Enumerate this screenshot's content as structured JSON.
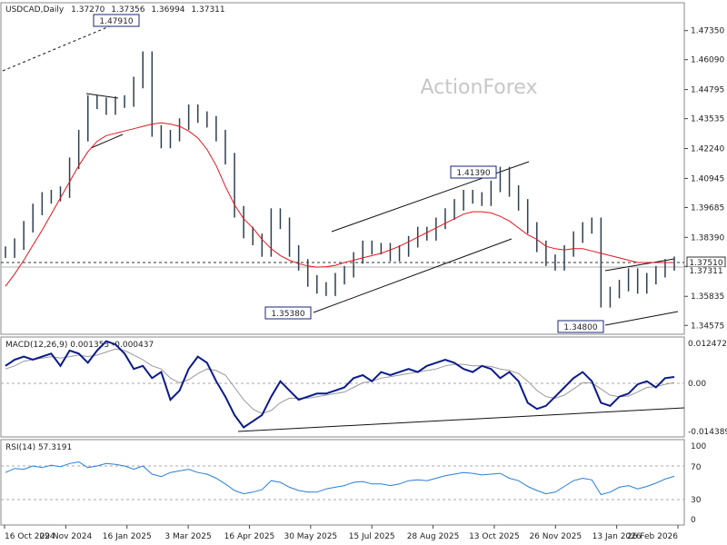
{
  "chart_data": [
    {
      "type": "line",
      "title": "USDCAD,Daily",
      "ohlc": [
        "1.37270",
        "1.37356",
        "1.36994",
        "1.37311"
      ],
      "watermark": "ActionForex",
      "x_tick_labels": [
        "16 Oct 2024",
        "29 Nov 2024",
        "16 Jan 2025",
        "3 Mar 2025",
        "16 Apr 2025",
        "30 May 2025",
        "15 Jul 2025",
        "28 Aug 2025",
        "13 Oct 2025",
        "26 Nov 2025",
        "13 Jan 2026",
        "26 Feb 2026"
      ],
      "y_tick_labels": [
        "1.47350",
        "1.46090",
        "1.44795",
        "1.43535",
        "1.42240",
        "1.40945",
        "1.39685",
        "1.38390",
        "1.37130",
        "1.35835",
        "1.34575"
      ],
      "ylim": [
        1.3427,
        1.4848
      ],
      "level_labels": [
        "1.47910",
        "1.41390",
        "1.35380",
        "1.34800"
      ],
      "current_price_label": "1.37311",
      "horizontal_level_label": "1.37510",
      "horizontal_level": 1.3751,
      "grid": false,
      "series": [
        {
          "type": "candlestick-ohlc",
          "x_dates": [
            "2024-10-16",
            "2024-10-23",
            "2024-10-30",
            "2024-11-06",
            "2024-11-13",
            "2024-11-20",
            "2024-11-27",
            "2024-12-04",
            "2024-12-11",
            "2024-12-18",
            "2024-12-25",
            "2025-01-01",
            "2025-01-08",
            "2025-01-15",
            "2025-01-22",
            "2025-01-29",
            "2025-02-05",
            "2025-02-12",
            "2025-02-19",
            "2025-02-26",
            "2025-03-05",
            "2025-03-12",
            "2025-03-19",
            "2025-03-26",
            "2025-04-02",
            "2025-04-09",
            "2025-04-16",
            "2025-04-23",
            "2025-04-30",
            "2025-05-07",
            "2025-05-14",
            "2025-05-21",
            "2025-05-28",
            "2025-06-04",
            "2025-06-11",
            "2025-06-18",
            "2025-06-25",
            "2025-07-02",
            "2025-07-09",
            "2025-07-16",
            "2025-07-23",
            "2025-07-30",
            "2025-08-06",
            "2025-08-13",
            "2025-08-20",
            "2025-08-27",
            "2025-09-03",
            "2025-09-10",
            "2025-09-17",
            "2025-09-24",
            "2025-10-01",
            "2025-10-08",
            "2025-10-15",
            "2025-10-22",
            "2025-10-29",
            "2025-11-05",
            "2025-11-12",
            "2025-11-19",
            "2025-11-26",
            "2025-12-03",
            "2025-12-10",
            "2025-12-17",
            "2025-12-24",
            "2025-12-31",
            "2026-01-07",
            "2026-01-14",
            "2026-01-21",
            "2026-01-28",
            "2026-02-04",
            "2026-02-11",
            "2026-02-18",
            "2026-02-25",
            "2026-03-04",
            "2026-03-11"
          ],
          "close": [
            1.3775,
            1.381,
            1.3885,
            1.396,
            1.401,
            1.402,
            1.4035,
            1.416,
            1.428,
            1.443,
            1.442,
            1.4395,
            1.4425,
            1.443,
            1.451,
            1.462,
            1.43,
            1.425,
            1.428,
            1.433,
            1.439,
            1.436,
            1.434,
            1.428,
            1.418,
            1.395,
            1.386,
            1.383,
            1.378,
            1.394,
            1.39,
            1.378,
            1.372,
            1.365,
            1.362,
            1.361,
            1.366,
            1.369,
            1.375,
            1.38,
            1.379,
            1.379,
            1.376,
            1.378,
            1.382,
            1.386,
            1.385,
            1.39,
            1.394,
            1.398,
            1.402,
            1.401,
            1.4,
            1.406,
            1.412,
            1.404,
            1.398,
            1.388,
            1.38,
            1.374,
            1.372,
            1.378,
            1.384,
            1.388,
            1.39,
            1.356,
            1.36,
            1.363,
            1.368,
            1.362,
            1.366,
            1.369,
            1.372,
            1.3731
          ]
        },
        {
          "name": "",
          "type": "sma",
          "color": "#e8141c",
          "values": [
            1.3627,
            1.368,
            1.374,
            1.3805,
            1.387,
            1.394,
            1.401,
            1.408,
            1.415,
            1.421,
            1.4255,
            1.428,
            1.429,
            1.43,
            1.431,
            1.432,
            1.433,
            1.4335,
            1.433,
            1.432,
            1.43,
            1.427,
            1.422,
            1.415,
            1.406,
            1.398,
            1.392,
            1.388,
            1.383,
            1.379,
            1.376,
            1.374,
            1.3725,
            1.3715,
            1.371,
            1.3712,
            1.3718,
            1.373,
            1.374,
            1.375,
            1.376,
            1.377,
            1.3785,
            1.38,
            1.382,
            1.384,
            1.386,
            1.388,
            1.39,
            1.392,
            1.394,
            1.395,
            1.395,
            1.3945,
            1.393,
            1.391,
            1.388,
            1.385,
            1.383,
            1.38,
            1.379,
            1.3785,
            1.379,
            1.379,
            1.378,
            1.377,
            1.376,
            1.375,
            1.374,
            1.373,
            1.373,
            1.373,
            1.373,
            1.373
          ]
        }
      ]
    },
    {
      "type": "line",
      "title": "MACD(12,26,9) 0.001353 -0.000437",
      "y_tick_labels": [
        "0.012472",
        "0.00",
        "-0.014389"
      ],
      "ylim": [
        -0.0175,
        0.0138
      ],
      "series": [
        {
          "name": "",
          "color": "#0a1a8c",
          "values": [
            0.005,
            0.007,
            0.008,
            0.007,
            0.008,
            0.009,
            0.005,
            0.01,
            0.009,
            0.006,
            0.01,
            0.013,
            0.012,
            0.009,
            0.004,
            0.005,
            0.001,
            0.003,
            -0.006,
            -0.003,
            0.004,
            0.008,
            0.006,
            0.0,
            -0.005,
            -0.011,
            -0.015,
            -0.013,
            -0.011,
            -0.005,
            0.0,
            -0.003,
            -0.006,
            -0.005,
            -0.004,
            -0.004,
            -0.003,
            -0.002,
            0.001,
            0.002,
            0.0,
            0.003,
            0.002,
            0.003,
            0.004,
            0.003,
            0.005,
            0.006,
            0.007,
            0.006,
            0.004,
            0.003,
            0.005,
            0.004,
            0.001,
            0.003,
            0.0,
            -0.007,
            -0.009,
            -0.008,
            -0.005,
            -0.002,
            0.001,
            0.003,
            0.0,
            -0.007,
            -0.008,
            -0.005,
            -0.004,
            -0.001,
            0.0,
            -0.002,
            0.001,
            0.0014
          ]
        },
        {
          "name": "",
          "color": "#999999",
          "values": [
            0.004,
            0.005,
            0.0065,
            0.007,
            0.0075,
            0.008,
            0.0075,
            0.008,
            0.0085,
            0.008,
            0.0085,
            0.0095,
            0.0105,
            0.01,
            0.0085,
            0.007,
            0.005,
            0.004,
            0.001,
            -0.0005,
            0.0005,
            0.0025,
            0.004,
            0.0035,
            0.002,
            -0.002,
            -0.006,
            -0.009,
            -0.0105,
            -0.0095,
            -0.007,
            -0.0055,
            -0.0055,
            -0.0055,
            -0.005,
            -0.0045,
            -0.004,
            -0.0035,
            -0.002,
            -0.0005,
            0.0,
            0.001,
            0.0015,
            0.002,
            0.0025,
            0.003,
            0.0035,
            0.004,
            0.005,
            0.0055,
            0.0055,
            0.005,
            0.005,
            0.0048,
            0.004,
            0.0035,
            0.0025,
            0.0,
            -0.003,
            -0.005,
            -0.0055,
            -0.0045,
            -0.0025,
            -0.0005,
            -0.0005,
            -0.0025,
            -0.0045,
            -0.005,
            -0.0048,
            -0.0035,
            -0.002,
            -0.0018,
            -0.001,
            -0.0004
          ]
        }
      ]
    },
    {
      "type": "line",
      "title": "RSI(14) 57.3191",
      "y_tick_labels": [
        "100",
        "70",
        "30",
        "0"
      ],
      "ylim": [
        0,
        100
      ],
      "series": [
        {
          "name": "",
          "color": "#2a7fd4",
          "values": [
            62,
            67,
            66,
            70,
            68,
            71,
            69,
            73,
            75,
            68,
            70,
            73,
            72,
            70,
            66,
            70,
            60,
            57,
            62,
            64,
            66,
            62,
            60,
            55,
            48,
            40,
            36,
            38,
            41,
            52,
            50,
            44,
            40,
            38,
            38,
            42,
            44,
            46,
            50,
            51,
            48,
            48,
            46,
            48,
            52,
            53,
            52,
            55,
            58,
            60,
            62,
            61,
            59,
            60,
            61,
            55,
            52,
            45,
            40,
            36,
            38,
            45,
            52,
            55,
            53,
            35,
            38,
            44,
            46,
            42,
            45,
            49,
            54,
            57.3
          ]
        }
      ],
      "levels": [
        70,
        30
      ]
    }
  ]
}
